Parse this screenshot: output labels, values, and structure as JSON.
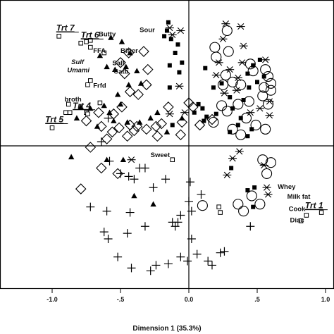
{
  "chart_data": {
    "type": "scatter",
    "title": "",
    "xlabel": "Dimension 1 (35.3%)",
    "ylabel": "",
    "xlim": [
      -1.05,
      1.05
    ],
    "ylim": [
      -1.03,
      1.03
    ],
    "grid": false,
    "xticks": [
      {
        "value": -1.0,
        "label": "-1.0"
      },
      {
        "value": -0.5,
        "label": "-.5"
      },
      {
        "value": 0.0,
        "label": "0.0"
      },
      {
        "value": 0.5,
        "label": ".5"
      },
      {
        "value": 1.0,
        "label": "1.0"
      }
    ],
    "series": [
      {
        "marker": "triangle",
        "color": "#000000",
        "points": [
          [
            -0.57,
            0.78
          ],
          [
            -0.49,
            0.75
          ],
          [
            -0.65,
            0.65
          ],
          [
            -0.6,
            0.57
          ],
          [
            -0.54,
            0.55
          ],
          [
            -0.43,
            0.67
          ],
          [
            -0.46,
            0.57
          ],
          [
            -0.38,
            0.54
          ],
          [
            -0.44,
            0.44
          ],
          [
            -0.52,
            0.37
          ],
          [
            -0.35,
            0.45
          ],
          [
            -0.5,
            0.3
          ],
          [
            -0.58,
            0.24
          ],
          [
            -0.62,
            0.29
          ],
          [
            -0.72,
            0.27
          ],
          [
            -0.67,
            0.14
          ],
          [
            -0.55,
            0.18
          ],
          [
            -0.45,
            0.17
          ],
          [
            -0.36,
            0.17
          ],
          [
            -0.28,
            0.2
          ],
          [
            -0.23,
            0.24
          ],
          [
            -0.86,
            -0.08
          ],
          [
            -0.6,
            -0.1
          ],
          [
            -0.48,
            -0.1
          ],
          [
            -0.4,
            -0.36
          ],
          [
            -0.26,
            -0.42
          ],
          [
            -0.79,
            0.28
          ],
          [
            -0.82,
            0.2
          ],
          [
            -0.05,
            0.2
          ],
          [
            -0.16,
            0.1
          ]
        ]
      },
      {
        "marker": "square-filled",
        "color": "#000000",
        "points": [
          [
            -0.15,
            0.89
          ],
          [
            -0.16,
            0.83
          ],
          [
            -0.18,
            0.79
          ],
          [
            -0.13,
            0.77
          ],
          [
            -0.08,
            0.73
          ],
          [
            -0.1,
            0.67
          ],
          [
            -0.05,
            0.6
          ],
          [
            -0.14,
            0.58
          ],
          [
            -0.07,
            0.53
          ],
          [
            0.07,
            0.3
          ],
          [
            0.04,
            0.24
          ],
          [
            0.1,
            0.27
          ],
          [
            0.13,
            0.21
          ],
          [
            0.2,
            0.23
          ],
          [
            0.11,
            0.18
          ],
          [
            0.32,
            0.27
          ],
          [
            0.5,
            0.46
          ],
          [
            0.55,
            0.5
          ],
          [
            0.44,
            0.42
          ],
          [
            0.4,
            0.33
          ],
          [
            0.38,
            0.2
          ],
          [
            0.46,
            0.12
          ],
          [
            0.43,
            0.07
          ],
          [
            0.52,
            0.62
          ],
          [
            0.47,
            0.58
          ],
          [
            0.43,
            0.52
          ],
          [
            0.36,
            0.15
          ],
          [
            0.3,
            0.1
          ],
          [
            0.31,
            -0.16
          ],
          [
            0.48,
            -0.3
          ],
          [
            0.43,
            -0.32
          ],
          [
            0.47,
            -0.44
          ],
          [
            0.18,
            0.42
          ],
          [
            0.24,
            0.45
          ],
          [
            0.12,
            0.56
          ],
          [
            -0.12,
            0.15
          ],
          [
            0.3,
            0.35
          ],
          [
            -0.14,
            0.42
          ]
        ]
      },
      {
        "marker": "star",
        "color": "#000000",
        "points": [
          [
            -0.14,
            0.85
          ],
          [
            -0.12,
            0.8
          ],
          [
            -0.06,
            0.83
          ],
          [
            0.27,
            0.88
          ],
          [
            0.38,
            0.86
          ],
          [
            0.25,
            0.77
          ],
          [
            0.4,
            0.72
          ],
          [
            0.22,
            0.6
          ],
          [
            0.39,
            0.6
          ],
          [
            0.56,
            0.62
          ],
          [
            0.2,
            0.51
          ],
          [
            0.3,
            0.55
          ],
          [
            0.36,
            0.49
          ],
          [
            0.26,
            0.38
          ],
          [
            -0.07,
            0.43
          ],
          [
            -0.14,
            0.23
          ],
          [
            -0.03,
            0.24
          ],
          [
            0.35,
            0.4
          ],
          [
            0.59,
            0.32
          ],
          [
            0.52,
            0.27
          ],
          [
            0.59,
            0.22
          ],
          [
            0.45,
            0.24
          ],
          [
            0.37,
            -0.04
          ],
          [
            0.55,
            -0.14
          ],
          [
            0.32,
            -0.09
          ],
          [
            0.28,
            -0.21
          ],
          [
            0.57,
            -0.3
          ],
          [
            0.58,
            -0.35
          ],
          [
            -0.42,
            -0.1
          ]
        ]
      },
      {
        "marker": "circle-open",
        "color": "#000000",
        "points": [
          [
            0.28,
            0.83
          ],
          [
            0.19,
            0.71
          ],
          [
            0.29,
            0.68
          ],
          [
            0.2,
            0.64
          ],
          [
            0.45,
            0.59
          ],
          [
            0.47,
            0.54
          ],
          [
            0.56,
            0.55
          ],
          [
            0.58,
            0.5
          ],
          [
            0.6,
            0.45
          ],
          [
            0.27,
            0.51
          ],
          [
            0.32,
            0.46
          ],
          [
            0.25,
            0.44
          ],
          [
            0.38,
            0.44
          ],
          [
            0.55,
            0.42
          ],
          [
            0.6,
            0.4
          ],
          [
            0.54,
            0.36
          ],
          [
            0.58,
            0.3
          ],
          [
            0.44,
            0.32
          ],
          [
            0.36,
            0.3
          ],
          [
            0.24,
            0.29
          ],
          [
            0.28,
            0.25
          ],
          [
            0.42,
            0.2
          ],
          [
            0.49,
            0.15
          ],
          [
            0.32,
            0.12
          ],
          [
            0.56,
            0.12
          ],
          [
            0.18,
            0.17
          ],
          [
            0.38,
            0.08
          ],
          [
            0.54,
            -0.1
          ],
          [
            0.6,
            -0.12
          ],
          [
            0.57,
            -0.2
          ],
          [
            0.46,
            -0.36
          ],
          [
            0.52,
            -0.42
          ],
          [
            0.4,
            -0.47
          ],
          [
            0.36,
            -0.42
          ],
          [
            0.1,
            -0.43
          ]
        ]
      },
      {
        "marker": "diamond-open",
        "color": "#000000",
        "points": [
          [
            -0.33,
            0.68
          ],
          [
            -0.44,
            0.67
          ],
          [
            -0.3,
            0.55
          ],
          [
            -0.31,
            0.44
          ],
          [
            -0.5,
            0.6
          ],
          [
            -0.47,
            0.52
          ],
          [
            -0.43,
            0.39
          ],
          [
            -0.37,
            0.37
          ],
          [
            -0.49,
            0.28
          ],
          [
            -0.55,
            0.23
          ],
          [
            -0.66,
            0.24
          ],
          [
            -0.64,
            0.14
          ],
          [
            -0.51,
            0.13
          ],
          [
            -0.43,
            0.15
          ],
          [
            -0.31,
            0.12
          ],
          [
            -0.24,
            0.14
          ],
          [
            -0.23,
            0.07
          ],
          [
            -0.2,
            0.16
          ],
          [
            -0.15,
            0.28
          ],
          [
            -0.38,
            0.14
          ],
          [
            -0.45,
            0.07
          ],
          [
            -0.6,
            0.05
          ],
          [
            -0.56,
            0.1
          ],
          [
            -0.75,
            0.18
          ],
          [
            -0.72,
            -0.01
          ],
          [
            -0.79,
            -0.31
          ],
          [
            -0.64,
            -0.16
          ],
          [
            -0.52,
            -0.2
          ],
          [
            0.03,
            0.28
          ],
          [
            -0.05,
            0.17
          ],
          [
            0.08,
            0.15
          ],
          [
            -0.06,
            0.08
          ],
          [
            0.0,
            0.31
          ],
          [
            0.17,
            0.19
          ],
          [
            -0.4,
            0.11
          ]
        ]
      },
      {
        "marker": "plus",
        "color": "#000000",
        "points": [
          [
            -0.59,
            0.2
          ],
          [
            -0.64,
            0.03
          ],
          [
            -0.58,
            -0.11
          ],
          [
            -0.5,
            -0.2
          ],
          [
            -0.44,
            -0.22
          ],
          [
            -0.36,
            -0.16
          ],
          [
            -0.4,
            -0.24
          ],
          [
            -0.26,
            -0.3
          ],
          [
            -0.17,
            -0.24
          ],
          [
            0.01,
            -0.26
          ],
          [
            -0.72,
            -0.44
          ],
          [
            -0.6,
            -0.47
          ],
          [
            -0.43,
            -0.48
          ],
          [
            -0.62,
            -0.62
          ],
          [
            -0.59,
            -0.67
          ],
          [
            -0.45,
            -0.63
          ],
          [
            -0.32,
            -0.58
          ],
          [
            -0.12,
            -0.55
          ],
          [
            -0.1,
            -0.58
          ],
          [
            -0.06,
            -0.5
          ],
          [
            -0.52,
            -0.8
          ],
          [
            -0.42,
            -0.88
          ],
          [
            -0.28,
            -0.9
          ],
          [
            -0.24,
            -0.86
          ],
          [
            -0.15,
            -0.85
          ],
          [
            -0.06,
            -0.8
          ],
          [
            -0.01,
            -0.83
          ],
          [
            0.06,
            -0.78
          ],
          [
            0.14,
            -0.83
          ],
          [
            0.23,
            -0.77
          ],
          [
            0.02,
            -0.67
          ],
          [
            0.02,
            -0.47
          ],
          [
            0.09,
            -0.35
          ],
          [
            0.0,
            -0.4
          ],
          [
            -0.08,
            -0.55
          ],
          [
            0.45,
            -0.58
          ],
          [
            0.17,
            -0.86
          ],
          [
            0.26,
            -0.76
          ],
          [
            -0.32,
            -0.16
          ]
        ]
      },
      {
        "marker": "square-open",
        "color": "#000000",
        "points": [
          [
            -0.95,
            0.79
          ],
          [
            -0.79,
            0.74
          ],
          [
            -0.75,
            0.75
          ],
          [
            -0.72,
            0.76
          ],
          [
            -0.72,
            0.71
          ],
          [
            -0.62,
            0.67
          ],
          [
            -0.72,
            0.47
          ],
          [
            -0.74,
            0.44
          ],
          [
            -0.88,
            0.3
          ],
          [
            -0.87,
            0.24
          ],
          [
            -0.9,
            0.24
          ],
          [
            -0.75,
            0.24
          ],
          [
            -0.65,
            0.31
          ],
          [
            -1.0,
            0.13
          ],
          [
            -0.74,
            0.23
          ],
          [
            0.97,
            -0.48
          ],
          [
            0.86,
            -0.5
          ],
          [
            0.82,
            -0.54
          ],
          [
            -0.12,
            -0.1
          ],
          [
            0.22,
            -0.44
          ],
          [
            0.23,
            -0.48
          ]
        ]
      }
    ],
    "annotations": [
      {
        "text": "Trt 7",
        "x": -0.97,
        "y": 0.83,
        "kind": "treatment"
      },
      {
        "text": "Trt 6",
        "x": -0.79,
        "y": 0.78,
        "kind": "treatment"
      },
      {
        "text": "Trt 4",
        "x": -0.85,
        "y": 0.27,
        "kind": "treatment"
      },
      {
        "text": "Trt 5",
        "x": -1.05,
        "y": 0.17,
        "kind": "treatment"
      },
      {
        "text": "Trt 1",
        "x": 0.85,
        "y": -0.45,
        "kind": "treatment"
      },
      {
        "text": "Butty",
        "x": -0.66,
        "y": 0.79,
        "kind": "attribute"
      },
      {
        "text": "Sour",
        "x": -0.36,
        "y": 0.82,
        "kind": "attribute"
      },
      {
        "text": "FFA",
        "x": -0.7,
        "y": 0.67,
        "kind": "attribute"
      },
      {
        "text": "Bitter",
        "x": -0.5,
        "y": 0.67,
        "kind": "attribute"
      },
      {
        "text": "Sulf",
        "x": -0.86,
        "y": 0.59,
        "kind": "attribute",
        "italic": true
      },
      {
        "text": "Umami",
        "x": -0.89,
        "y": 0.53,
        "kind": "attribute",
        "italic": true
      },
      {
        "text": "Salt",
        "x": -0.56,
        "y": 0.58,
        "kind": "attribute"
      },
      {
        "text": "Catb",
        "x": -0.55,
        "y": 0.52,
        "kind": "attribute"
      },
      {
        "text": "Frfd",
        "x": -0.7,
        "y": 0.42,
        "kind": "attribute"
      },
      {
        "text": "broth",
        "x": -0.91,
        "y": 0.32,
        "kind": "attribute"
      },
      {
        "text": "Sweet",
        "x": -0.28,
        "y": -0.08,
        "kind": "attribute"
      },
      {
        "text": "Whey",
        "x": 0.65,
        "y": -0.31,
        "kind": "attribute"
      },
      {
        "text": "Milk fat",
        "x": 0.72,
        "y": -0.38,
        "kind": "attribute"
      },
      {
        "text": "Cook",
        "x": 0.73,
        "y": -0.47,
        "kind": "attribute"
      },
      {
        "text": "Diac",
        "x": 0.74,
        "y": -0.55,
        "kind": "attribute"
      }
    ]
  }
}
